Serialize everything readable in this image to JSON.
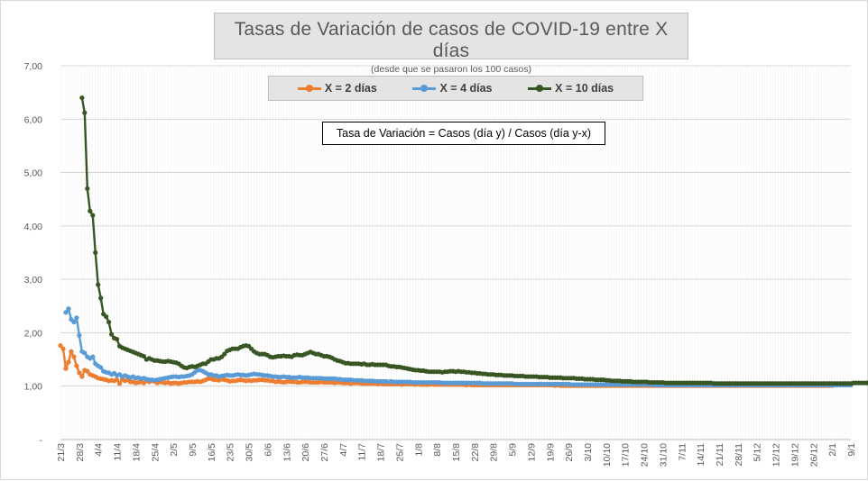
{
  "chart_data": {
    "type": "line",
    "title": "Tasas de Variación de casos de COVID-19 entre X días",
    "subtitle": "(desde que se pasaron los 100 casos)",
    "annotation": "Tasa de Variación = Casos (día y) / Casos (día y-x)",
    "ylim": [
      0,
      7
    ],
    "y_ticks": [
      {
        "value": 0,
        "label": "-"
      },
      {
        "value": 1,
        "label": "1,00"
      },
      {
        "value": 2,
        "label": "2,00"
      },
      {
        "value": 3,
        "label": "3,00"
      },
      {
        "value": 4,
        "label": "4,00"
      },
      {
        "value": 5,
        "label": "5,00"
      },
      {
        "value": 6,
        "label": "6,00"
      },
      {
        "value": 7,
        "label": "7,00"
      }
    ],
    "x_tick_labels": [
      "21/3",
      "28/3",
      "4/4",
      "11/4",
      "18/4",
      "25/4",
      "2/5",
      "9/5",
      "16/5",
      "23/5",
      "30/5",
      "6/6",
      "13/6",
      "20/6",
      "27/6",
      "4/7",
      "11/7",
      "18/7",
      "25/7",
      "1/8",
      "8/8",
      "15/8",
      "22/8",
      "29/8",
      "5/9",
      "12/9",
      "19/9",
      "26/9",
      "3/10",
      "10/10",
      "17/10",
      "24/10",
      "31/10",
      "7/11",
      "14/11",
      "21/11",
      "28/11",
      "5/12",
      "12/12",
      "19/12",
      "26/12",
      "2/1",
      "9/1"
    ],
    "grid": true,
    "legend_position": "top",
    "series": [
      {
        "name": "X = 2 días",
        "color": "#ed7d31",
        "start_day": 0,
        "values": [
          1.76,
          1.7,
          1.33,
          1.45,
          1.65,
          1.55,
          1.38,
          1.25,
          1.18,
          1.3,
          1.28,
          1.22,
          1.2,
          1.18,
          1.15,
          1.14,
          1.13,
          1.12,
          1.1,
          1.11,
          1.1,
          1.12,
          1.05,
          1.13,
          1.1,
          1.12,
          1.08,
          1.08,
          1.06,
          1.07,
          1.08,
          1.06,
          1.1,
          1.08,
          1.1,
          1.09,
          1.06,
          1.08,
          1.07,
          1.06,
          1.07,
          1.05,
          1.06,
          1.06,
          1.05,
          1.06,
          1.07,
          1.07,
          1.08,
          1.08,
          1.08,
          1.09,
          1.08,
          1.1,
          1.12,
          1.14,
          1.14,
          1.12,
          1.12,
          1.11,
          1.13,
          1.12,
          1.11,
          1.09,
          1.1,
          1.1,
          1.11,
          1.12,
          1.11,
          1.1,
          1.11,
          1.1,
          1.11,
          1.11,
          1.12,
          1.12,
          1.11,
          1.11,
          1.1,
          1.1,
          1.08,
          1.09,
          1.08,
          1.07,
          1.08,
          1.09,
          1.08,
          1.08,
          1.07,
          1.07,
          1.08,
          1.08,
          1.08,
          1.07,
          1.07,
          1.07,
          1.07,
          1.08,
          1.07,
          1.07,
          1.07,
          1.07,
          1.06,
          1.07,
          1.07,
          1.06,
          1.06,
          1.06,
          1.05,
          1.06,
          1.06,
          1.06,
          1.05,
          1.05,
          1.05,
          1.05,
          1.05,
          1.05,
          1.04,
          1.05,
          1.04,
          1.04,
          1.04,
          1.04,
          1.04,
          1.04,
          1.04,
          1.03,
          1.04,
          1.04,
          1.04,
          1.04,
          1.03,
          1.04,
          1.03,
          1.03,
          1.03,
          1.03,
          1.04,
          1.03,
          1.03,
          1.03,
          1.03,
          1.03,
          1.03,
          1.03,
          1.03,
          1.03,
          1.03,
          1.03,
          1.03,
          1.02,
          1.03,
          1.02,
          1.02,
          1.02,
          1.02,
          1.02,
          1.02,
          1.02,
          1.02,
          1.02,
          1.02,
          1.02,
          1.02,
          1.02,
          1.02,
          1.02,
          1.02,
          1.02,
          1.02,
          1.02,
          1.02,
          1.02,
          1.02,
          1.02,
          1.02,
          1.02,
          1.02,
          1.02,
          1.02,
          1.02,
          1.02,
          1.02,
          1.01,
          1.02,
          1.01,
          1.01,
          1.01,
          1.01,
          1.01,
          1.01,
          1.01,
          1.01,
          1.01,
          1.01,
          1.01,
          1.01,
          1.01,
          1.01,
          1.01,
          1.01,
          1.01,
          1.01,
          1.01,
          1.01,
          1.01,
          1.01,
          1.01,
          1.01,
          1.01,
          1.01,
          1.01,
          1.01,
          1.01,
          1.01,
          1.01,
          1.01,
          1.01,
          1.01,
          1.01,
          1.01,
          1.01,
          1.01,
          1.01,
          1.01,
          1.01,
          1.01,
          1.01,
          1.01,
          1.01,
          1.01,
          1.01,
          1.01,
          1.01,
          1.01,
          1.01,
          1.01,
          1.01,
          1.01,
          1.01,
          1.01,
          1.01,
          1.01,
          1.01,
          1.01,
          1.01,
          1.01,
          1.01,
          1.01,
          1.01,
          1.01,
          1.01,
          1.01,
          1.01,
          1.01,
          1.01,
          1.01,
          1.01,
          1.01,
          1.01,
          1.01,
          1.01,
          1.01,
          1.01,
          1.01,
          1.01,
          1.01,
          1.01,
          1.01,
          1.01,
          1.01,
          1.01,
          1.01,
          1.01,
          1.01,
          1.01,
          1.01,
          1.01,
          1.01,
          1.01,
          1.01,
          1.01,
          1.01,
          1.01,
          1.01,
          1.01,
          1.01
        ]
      },
      {
        "name": "X = 4 días",
        "color": "#5b9bd5",
        "start_day": 2,
        "values": [
          2.38,
          2.45,
          2.25,
          2.2,
          2.28,
          1.95,
          1.65,
          1.62,
          1.55,
          1.52,
          1.55,
          1.42,
          1.38,
          1.35,
          1.28,
          1.26,
          1.25,
          1.22,
          1.24,
          1.2,
          1.22,
          1.18,
          1.2,
          1.18,
          1.16,
          1.18,
          1.15,
          1.16,
          1.14,
          1.15,
          1.13,
          1.12,
          1.12,
          1.11,
          1.12,
          1.13,
          1.14,
          1.15,
          1.16,
          1.17,
          1.18,
          1.18,
          1.17,
          1.18,
          1.18,
          1.19,
          1.2,
          1.22,
          1.26,
          1.3,
          1.3,
          1.28,
          1.25,
          1.22,
          1.22,
          1.2,
          1.2,
          1.18,
          1.19,
          1.2,
          1.21,
          1.2,
          1.2,
          1.21,
          1.22,
          1.21,
          1.21,
          1.2,
          1.21,
          1.22,
          1.23,
          1.22,
          1.22,
          1.21,
          1.2,
          1.2,
          1.19,
          1.18,
          1.18,
          1.17,
          1.17,
          1.18,
          1.17,
          1.17,
          1.16,
          1.16,
          1.16,
          1.17,
          1.16,
          1.16,
          1.16,
          1.15,
          1.15,
          1.15,
          1.15,
          1.15,
          1.14,
          1.14,
          1.14,
          1.14,
          1.14,
          1.13,
          1.13,
          1.12,
          1.12,
          1.12,
          1.12,
          1.11,
          1.11,
          1.11,
          1.11,
          1.1,
          1.1,
          1.1,
          1.1,
          1.09,
          1.09,
          1.09,
          1.09,
          1.09,
          1.08,
          1.09,
          1.08,
          1.08,
          1.08,
          1.08,
          1.08,
          1.08,
          1.08,
          1.07,
          1.07,
          1.07,
          1.07,
          1.07,
          1.07,
          1.07,
          1.07,
          1.07,
          1.07,
          1.07,
          1.06,
          1.06,
          1.06,
          1.06,
          1.06,
          1.06,
          1.06,
          1.06,
          1.06,
          1.06,
          1.06,
          1.06,
          1.06,
          1.06,
          1.06,
          1.05,
          1.05,
          1.05,
          1.05,
          1.05,
          1.05,
          1.05,
          1.05,
          1.05,
          1.05,
          1.05,
          1.05,
          1.04,
          1.04,
          1.04,
          1.04,
          1.04,
          1.04,
          1.04,
          1.04,
          1.04,
          1.04,
          1.04,
          1.04,
          1.04,
          1.04,
          1.04,
          1.04,
          1.04,
          1.04,
          1.04,
          1.04,
          1.04,
          1.03,
          1.03,
          1.03,
          1.03,
          1.03,
          1.03,
          1.03,
          1.03,
          1.03,
          1.03,
          1.03,
          1.03,
          1.03,
          1.03,
          1.03,
          1.03,
          1.03,
          1.03,
          1.03,
          1.03,
          1.03,
          1.03,
          1.03,
          1.03,
          1.03,
          1.03,
          1.03,
          1.03,
          1.03,
          1.03,
          1.03,
          1.02,
          1.02,
          1.02,
          1.02,
          1.02,
          1.02,
          1.02,
          1.02,
          1.02,
          1.02,
          1.02,
          1.02,
          1.02,
          1.02,
          1.02,
          1.02,
          1.02,
          1.02,
          1.02,
          1.02,
          1.02,
          1.02,
          1.02,
          1.02,
          1.02,
          1.02,
          1.02,
          1.02,
          1.02,
          1.02,
          1.02,
          1.02,
          1.02,
          1.02,
          1.02,
          1.02,
          1.02,
          1.02,
          1.02,
          1.02,
          1.02,
          1.02,
          1.02,
          1.02,
          1.02,
          1.02,
          1.02,
          1.02,
          1.02,
          1.02,
          1.02,
          1.02,
          1.02,
          1.02,
          1.02,
          1.02,
          1.02,
          1.02,
          1.02,
          1.02,
          1.02,
          1.02,
          1.02,
          1.02,
          1.02,
          1.02,
          1.02,
          1.02,
          1.02,
          1.02,
          1.02,
          1.02,
          1.02,
          1.02
        ]
      },
      {
        "name": "X = 10 días",
        "color": "#375623",
        "start_day": 8,
        "values": [
          6.4,
          6.12,
          4.7,
          4.28,
          4.2,
          3.5,
          2.9,
          2.65,
          2.35,
          2.3,
          2.2,
          1.97,
          1.9,
          1.88,
          1.75,
          1.72,
          1.7,
          1.68,
          1.66,
          1.64,
          1.62,
          1.6,
          1.58,
          1.56,
          1.5,
          1.52,
          1.5,
          1.48,
          1.48,
          1.47,
          1.46,
          1.46,
          1.47,
          1.46,
          1.45,
          1.44,
          1.42,
          1.38,
          1.35,
          1.34,
          1.36,
          1.37,
          1.36,
          1.38,
          1.4,
          1.42,
          1.42,
          1.46,
          1.5,
          1.5,
          1.52,
          1.52,
          1.55,
          1.6,
          1.66,
          1.68,
          1.7,
          1.7,
          1.7,
          1.73,
          1.75,
          1.76,
          1.75,
          1.7,
          1.65,
          1.62,
          1.6,
          1.6,
          1.6,
          1.58,
          1.55,
          1.54,
          1.55,
          1.56,
          1.56,
          1.57,
          1.56,
          1.56,
          1.55,
          1.58,
          1.59,
          1.58,
          1.58,
          1.6,
          1.62,
          1.64,
          1.62,
          1.6,
          1.6,
          1.58,
          1.56,
          1.56,
          1.55,
          1.53,
          1.5,
          1.48,
          1.47,
          1.45,
          1.43,
          1.43,
          1.42,
          1.42,
          1.42,
          1.42,
          1.41,
          1.42,
          1.4,
          1.4,
          1.41,
          1.4,
          1.4,
          1.4,
          1.4,
          1.4,
          1.38,
          1.37,
          1.37,
          1.36,
          1.36,
          1.35,
          1.34,
          1.33,
          1.32,
          1.31,
          1.3,
          1.3,
          1.29,
          1.29,
          1.28,
          1.27,
          1.27,
          1.27,
          1.27,
          1.27,
          1.26,
          1.27,
          1.27,
          1.28,
          1.28,
          1.27,
          1.28,
          1.27,
          1.27,
          1.26,
          1.26,
          1.25,
          1.25,
          1.24,
          1.24,
          1.23,
          1.23,
          1.22,
          1.22,
          1.22,
          1.21,
          1.21,
          1.21,
          1.2,
          1.2,
          1.2,
          1.2,
          1.19,
          1.19,
          1.19,
          1.19,
          1.18,
          1.18,
          1.18,
          1.18,
          1.18,
          1.17,
          1.17,
          1.17,
          1.17,
          1.16,
          1.16,
          1.16,
          1.16,
          1.16,
          1.15,
          1.15,
          1.15,
          1.15,
          1.15,
          1.14,
          1.14,
          1.14,
          1.13,
          1.13,
          1.13,
          1.13,
          1.12,
          1.12,
          1.12,
          1.12,
          1.11,
          1.11,
          1.1,
          1.1,
          1.1,
          1.1,
          1.09,
          1.09,
          1.09,
          1.09,
          1.08,
          1.08,
          1.08,
          1.08,
          1.08,
          1.08,
          1.07,
          1.07,
          1.07,
          1.07,
          1.07,
          1.07,
          1.06,
          1.06,
          1.06,
          1.06,
          1.06,
          1.06,
          1.06,
          1.06,
          1.06,
          1.06,
          1.06,
          1.06,
          1.06,
          1.06,
          1.06,
          1.06,
          1.06,
          1.06,
          1.05,
          1.05,
          1.05,
          1.05,
          1.05,
          1.05,
          1.05,
          1.05,
          1.05,
          1.05,
          1.05,
          1.05,
          1.05,
          1.05,
          1.05,
          1.05,
          1.05,
          1.05,
          1.05,
          1.05,
          1.05,
          1.05,
          1.05,
          1.05,
          1.05,
          1.05,
          1.05,
          1.05,
          1.05,
          1.05,
          1.05,
          1.05,
          1.05,
          1.05,
          1.05,
          1.05,
          1.05,
          1.05,
          1.05,
          1.05,
          1.05,
          1.05,
          1.05,
          1.05,
          1.05,
          1.05,
          1.05,
          1.05,
          1.05,
          1.05,
          1.05,
          1.05,
          1.06,
          1.06,
          1.06,
          1.06,
          1.06,
          1.06,
          1.06,
          1.06
        ]
      }
    ]
  }
}
